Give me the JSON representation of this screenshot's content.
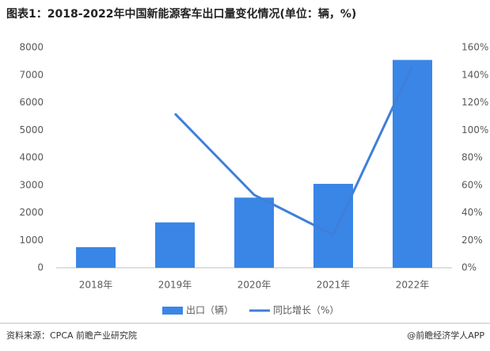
{
  "chart_data": {
    "type": "bar",
    "title": "图表1：2018-2022年中国新能源客车出口量变化情况(单位：辆，%)",
    "categories": [
      "2018年",
      "2019年",
      "2020年",
      "2021年",
      "2022年"
    ],
    "series": [
      {
        "name": "出口（辆）",
        "type": "bar",
        "color": "#3a86e6",
        "values": [
          750,
          1650,
          2550,
          3050,
          7550
        ]
      },
      {
        "name": "同比增长（%）",
        "type": "line",
        "axis": "y2",
        "color": "#3f7fd9",
        "values": [
          null,
          112,
          53,
          24,
          147
        ]
      }
    ],
    "ylim": [
      0,
      8000
    ],
    "yticks": [
      0,
      1000,
      2000,
      3000,
      4000,
      5000,
      6000,
      7000,
      8000
    ],
    "y2lim": [
      0,
      160
    ],
    "y2ticks": [
      {
        "value": 0,
        "label": "0%"
      },
      {
        "value": 20,
        "label": "20%"
      },
      {
        "value": 40,
        "label": "40%"
      },
      {
        "value": 60,
        "label": "60%"
      },
      {
        "value": 80,
        "label": "80%"
      },
      {
        "value": 100,
        "label": "100%"
      },
      {
        "value": 120,
        "label": "120%"
      },
      {
        "value": 140,
        "label": "140%"
      },
      {
        "value": 160,
        "label": "160%"
      }
    ],
    "grid": false,
    "legend": "bottom",
    "source": "资料来源：CPCA 前瞻产业研究院",
    "credit": "@前瞻经济学人APP"
  }
}
